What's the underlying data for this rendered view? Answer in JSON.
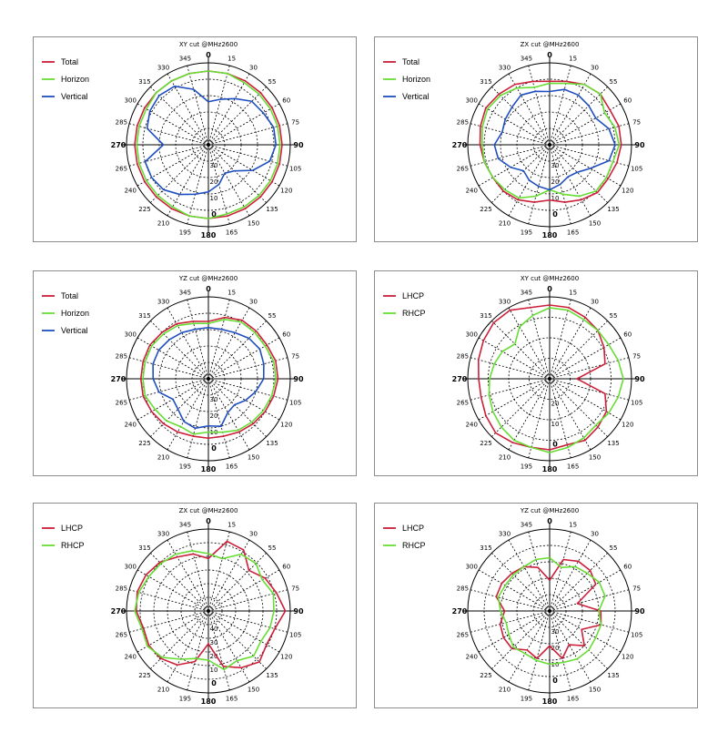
{
  "colors": {
    "red": "#cc1f3a",
    "green": "#66dd33",
    "blue": "#1f4fbf"
  },
  "chart_data": [
    {
      "type": "polar",
      "title": "XY cut @MHz2600",
      "angle_labels": [
        "0",
        "15",
        "30",
        "55",
        "60",
        "75",
        "90",
        "105",
        "120",
        "135",
        "150",
        "165",
        "180",
        "195",
        "210",
        "225",
        "240",
        "265",
        "270",
        "285",
        "300",
        "315",
        "330",
        "345"
      ],
      "radial_labels": [
        "0",
        "10",
        "20",
        "30"
      ],
      "r_range": [
        -40,
        0
      ],
      "legend_position": "top-left",
      "series": [
        {
          "name": "Total",
          "color": "red",
          "values": [
            -4,
            -4,
            -4,
            -4,
            -4,
            -4,
            -4,
            -4,
            -4,
            -4,
            -4,
            -4,
            -4,
            -4,
            -4,
            -4,
            -4,
            -4,
            -4,
            -4,
            -4,
            -4,
            -4,
            -4
          ]
        },
        {
          "name": "Horizon",
          "color": "green",
          "values": [
            -4,
            -4,
            -5,
            -5,
            -5,
            -5,
            -5,
            -5,
            -5,
            -5,
            -5,
            -5,
            -4,
            -4,
            -5,
            -5,
            -5,
            -5,
            -5,
            -5,
            -5,
            -4,
            -4,
            -4
          ]
        },
        {
          "name": "Vertical",
          "color": "blue",
          "values": [
            -19,
            -17,
            -14,
            -10,
            -9,
            -7,
            -7,
            -9,
            -15,
            -22,
            -24,
            -20,
            -17,
            -15,
            -12,
            -9,
            -8,
            -8,
            -18,
            -9,
            -7,
            -6,
            -7,
            -12
          ]
        }
      ]
    },
    {
      "type": "polar",
      "title": "ZX cut @MHz2600",
      "angle_labels": [
        "0",
        "15",
        "30",
        "55",
        "60",
        "75",
        "90",
        "105",
        "120",
        "135",
        "150",
        "165",
        "180",
        "195",
        "210",
        "225",
        "240",
        "265",
        "270",
        "285",
        "300",
        "315",
        "330",
        "345"
      ],
      "radial_labels": [
        "0",
        "10",
        "20",
        "30"
      ],
      "r_range": [
        -40,
        0
      ],
      "legend_position": "top-left",
      "series": [
        {
          "name": "Total",
          "color": "red",
          "values": [
            -9,
            -8,
            -6,
            -5,
            -6,
            -5,
            -5,
            -6,
            -7,
            -7,
            -9,
            -11,
            -13,
            -11,
            -9,
            -8,
            -8,
            -7,
            -6,
            -5,
            -4,
            -5,
            -6,
            -8
          ]
        },
        {
          "name": "Horizon",
          "color": "green",
          "values": [
            -10,
            -9,
            -6,
            -5,
            -9,
            -7,
            -6,
            -8,
            -8,
            -8,
            -11,
            -15,
            -18,
            -14,
            -10,
            -9,
            -8,
            -7,
            -7,
            -6,
            -5,
            -6,
            -8,
            -11
          ]
        },
        {
          "name": "Vertical",
          "color": "blue",
          "values": [
            -14,
            -12,
            -12,
            -13,
            -14,
            -10,
            -8,
            -10,
            -17,
            -21,
            -22,
            -20,
            -18,
            -19,
            -20,
            -22,
            -18,
            -14,
            -13,
            -16,
            -15,
            -14,
            -12,
            -13
          ]
        }
      ]
    },
    {
      "type": "polar",
      "title": "YZ cut @MHz2600",
      "angle_labels": [
        "0",
        "15",
        "30",
        "55",
        "60",
        "75",
        "90",
        "105",
        "120",
        "135",
        "150",
        "165",
        "180",
        "195",
        "210",
        "225",
        "240",
        "265",
        "270",
        "285",
        "300",
        "315",
        "330",
        "345"
      ],
      "radial_labels": [
        "0",
        "10",
        "20",
        "30"
      ],
      "r_range": [
        -40,
        0
      ],
      "legend_position": "top-left",
      "series": [
        {
          "name": "Total",
          "color": "red",
          "values": [
            -12,
            -9,
            -7,
            -7,
            -7,
            -6,
            -6,
            -7,
            -8,
            -9,
            -10,
            -11,
            -11,
            -11,
            -10,
            -9,
            -8,
            -7,
            -7,
            -7,
            -7,
            -8,
            -9,
            -11
          ]
        },
        {
          "name": "Horizon",
          "color": "green",
          "values": [
            -13,
            -10,
            -8,
            -8,
            -8,
            -7,
            -7,
            -8,
            -9,
            -10,
            -11,
            -13,
            -14,
            -12,
            -13,
            -11,
            -10,
            -8,
            -8,
            -8,
            -8,
            -9,
            -10,
            -12
          ]
        },
        {
          "name": "Vertical",
          "color": "blue",
          "values": [
            -15,
            -15,
            -14,
            -12,
            -11,
            -12,
            -13,
            -16,
            -19,
            -22,
            -21,
            -16,
            -17,
            -15,
            -16,
            -19,
            -20,
            -15,
            -13,
            -12,
            -12,
            -13,
            -14,
            -15
          ]
        }
      ]
    },
    {
      "type": "polar",
      "title": "XY cut @MHz2600",
      "angle_labels": [
        "0",
        "15",
        "30",
        "55",
        "60",
        "75",
        "90",
        "105",
        "120",
        "135",
        "150",
        "165",
        "180",
        "195",
        "210",
        "225",
        "240",
        "265",
        "270",
        "285",
        "300",
        "315",
        "330",
        "345"
      ],
      "radial_labels": [
        "0",
        "10",
        "20"
      ],
      "r_range": [
        -30,
        0
      ],
      "legend_position": "top-left",
      "series": [
        {
          "name": "LHCP",
          "color": "red",
          "values": [
            -3,
            -3,
            -4,
            -5,
            -7,
            -9,
            -20,
            -9,
            -6,
            -5,
            -4,
            -5,
            -4,
            -4,
            -3,
            -2,
            -3,
            -4,
            -4,
            -3,
            -2,
            -1,
            -1,
            -3
          ]
        },
        {
          "name": "RHCP",
          "color": "green",
          "values": [
            -4,
            -4,
            -5,
            -5,
            -5,
            -4,
            -3,
            -4,
            -5,
            -6,
            -5,
            -4,
            -3,
            -4,
            -4,
            -5,
            -6,
            -7,
            -8,
            -9,
            -10,
            -12,
            -8,
            -6
          ]
        }
      ]
    },
    {
      "type": "polar",
      "title": "ZX cut @MHz2600",
      "angle_labels": [
        "0",
        "15",
        "30",
        "55",
        "60",
        "75",
        "90",
        "105",
        "120",
        "135",
        "150",
        "165",
        "180",
        "195",
        "210",
        "225",
        "240",
        "265",
        "270",
        "285",
        "300",
        "315",
        "330",
        "345"
      ],
      "radial_labels": [
        "0",
        "10",
        "20",
        "30",
        "40"
      ],
      "r_range": [
        -50,
        0
      ],
      "legend_position": "top-left",
      "series": [
        {
          "name": "LHCP",
          "color": "red",
          "values": [
            -18,
            -6,
            -7,
            -15,
            -10,
            -7,
            -3,
            -8,
            -9,
            -6,
            -10,
            -15,
            -30,
            -18,
            -12,
            -9,
            -8,
            -9,
            -6,
            -5,
            -6,
            -8,
            -12,
            -14
          ]
        },
        {
          "name": "RHCP",
          "color": "green",
          "values": [
            -15,
            -17,
            -10,
            -9,
            -12,
            -9,
            -10,
            -11,
            -13,
            -11,
            -15,
            -13,
            -20,
            -20,
            -16,
            -10,
            -7,
            -8,
            -5,
            -6,
            -8,
            -9,
            -10,
            -12
          ]
        }
      ]
    },
    {
      "type": "polar",
      "title": "YZ cut @MHz2600",
      "angle_labels": [
        "0",
        "15",
        "30",
        "55",
        "60",
        "75",
        "90",
        "105",
        "120",
        "135",
        "150",
        "165",
        "180",
        "195",
        "210",
        "225",
        "240",
        "265",
        "270",
        "285",
        "300",
        "315",
        "330",
        "345"
      ],
      "radial_labels": [
        "0",
        "10",
        "20",
        "30"
      ],
      "r_range": [
        -40,
        0
      ],
      "legend_position": "top-left",
      "series": [
        {
          "name": "LHCP",
          "color": "red",
          "values": [
            -25,
            -14,
            -12,
            -12,
            -14,
            -26,
            -15,
            -14,
            -22,
            -16,
            -21,
            -16,
            -23,
            -16,
            -18,
            -14,
            -14,
            -15,
            -18,
            -13,
            -13,
            -14,
            -15,
            -18
          ]
        },
        {
          "name": "RHCP",
          "color": "green",
          "values": [
            -14,
            -18,
            -15,
            -14,
            -12,
            -12,
            -16,
            -14,
            -14,
            -13,
            -13,
            -14,
            -14,
            -15,
            -16,
            -15,
            -17,
            -18,
            -16,
            -14,
            -15,
            -15,
            -15,
            -14
          ]
        }
      ]
    }
  ]
}
